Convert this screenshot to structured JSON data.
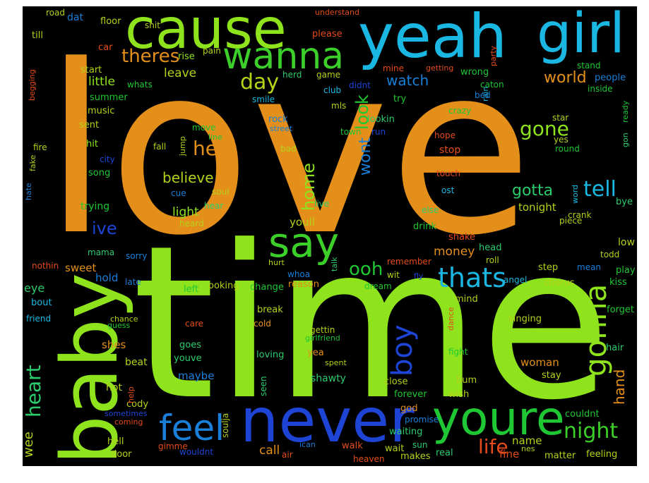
{
  "background": "#000000",
  "words": [
    {
      "text": "love",
      "color": "#e38f1a"
    },
    {
      "text": "time",
      "color": "#8ee31c"
    },
    {
      "text": "yeah",
      "color": "#1bb7e3"
    },
    {
      "text": "girl",
      "color": "#1bb7e3"
    },
    {
      "text": "cause",
      "color": "#8ee31c"
    },
    {
      "text": "wanna",
      "color": "#3ccf2a"
    },
    {
      "text": "baby",
      "color": "#8ee31c"
    },
    {
      "text": "never",
      "color": "#1e44d6"
    },
    {
      "text": "youre",
      "color": "#1ec733"
    },
    {
      "text": "feel",
      "color": "#1a7fd8"
    },
    {
      "text": "say",
      "color": "#3ccf2a"
    },
    {
      "text": "gonna",
      "color": "#8ee31c"
    },
    {
      "text": "thats",
      "color": "#1bb7e3"
    },
    {
      "text": "boy",
      "color": "#1e44d6"
    },
    {
      "text": "heart",
      "color": "#2ccc6e"
    },
    {
      "text": "theres",
      "color": "#e38f1a"
    },
    {
      "text": "day",
      "color": "#b5d119"
    },
    {
      "text": "gone",
      "color": "#8ee31c"
    },
    {
      "text": "hey",
      "color": "#e38f1a"
    },
    {
      "text": "tell",
      "color": "#1bb7e3"
    },
    {
      "text": "night",
      "color": "#3ccf2a"
    },
    {
      "text": "life",
      "color": "#e34b1a"
    },
    {
      "text": "ooh",
      "color": "#1ec733"
    },
    {
      "text": "believe",
      "color": "#b5d119"
    },
    {
      "text": "gotta",
      "color": "#2ccc6e"
    },
    {
      "text": "world",
      "color": "#e38f1a"
    },
    {
      "text": "watch",
      "color": "#1a7fd8"
    },
    {
      "text": "look",
      "color": "#1ec733"
    },
    {
      "text": "wont",
      "color": "#1a7fd8"
    },
    {
      "text": "home",
      "color": "#8ee31c"
    },
    {
      "text": "ive",
      "color": "#1e44d6"
    },
    {
      "text": "hand",
      "color": "#e38f1a"
    },
    {
      "text": "wee",
      "color": "#b5d119"
    },
    {
      "text": "leave",
      "color": "#b5d119"
    },
    {
      "text": "little",
      "color": "#8ee31c"
    },
    {
      "text": "light",
      "color": "#8ee31c"
    },
    {
      "text": "money",
      "color": "#e38f1a"
    },
    {
      "text": "tonight",
      "color": "#b5d119"
    },
    {
      "text": "youll",
      "color": "#b5d119"
    },
    {
      "text": "call",
      "color": "#e38f1a"
    },
    {
      "text": "name",
      "color": "#b5d119"
    },
    {
      "text": "fine",
      "color": "#e34b1a"
    },
    {
      "text": "eye",
      "color": "#2ccc6e"
    },
    {
      "text": "sweet",
      "color": "#e38f1a"
    },
    {
      "text": "hold",
      "color": "#1a7fd8"
    },
    {
      "text": "shes",
      "color": "#e38f1a"
    },
    {
      "text": "woman",
      "color": "#e38f1a"
    },
    {
      "text": "maybe",
      "color": "#1a7fd8"
    },
    {
      "text": "shawty",
      "color": "#2ccc6e"
    },
    {
      "text": "low",
      "color": "#b5d119"
    },
    {
      "text": "stop",
      "color": "#e34b1a"
    },
    {
      "text": "dat",
      "color": "#1a7fd8"
    },
    {
      "text": "road",
      "color": "#b5d119"
    },
    {
      "text": "floor",
      "color": "#b5d119"
    },
    {
      "text": "till",
      "color": "#b5d119"
    },
    {
      "text": "shit",
      "color": "#b5d119"
    },
    {
      "text": "car",
      "color": "#e34b1a"
    },
    {
      "text": "rise",
      "color": "#8ee31c"
    },
    {
      "text": "pain",
      "color": "#b5d119"
    },
    {
      "text": "please",
      "color": "#e34b1a"
    },
    {
      "text": "understand",
      "color": "#e34b1a"
    },
    {
      "text": "start",
      "color": "#b5d119"
    },
    {
      "text": "whats",
      "color": "#1ec733"
    },
    {
      "text": "summer",
      "color": "#1ec733"
    },
    {
      "text": "music",
      "color": "#b5d119"
    },
    {
      "text": "sent",
      "color": "#b5d119"
    },
    {
      "text": "hit",
      "color": "#8ee31c"
    },
    {
      "text": "song",
      "color": "#1ec733"
    },
    {
      "text": "trying",
      "color": "#1ec733"
    },
    {
      "text": "mama",
      "color": "#2ccc6e"
    },
    {
      "text": "sorry",
      "color": "#1a7fd8"
    },
    {
      "text": "nothin",
      "color": "#e34b1a"
    },
    {
      "text": "bout",
      "color": "#1bb7e3"
    },
    {
      "text": "friend",
      "color": "#1bb7e3"
    },
    {
      "text": "late",
      "color": "#1a7fd8"
    },
    {
      "text": "left",
      "color": "#1ec733"
    },
    {
      "text": "ooking",
      "color": "#b5d119"
    },
    {
      "text": "change",
      "color": "#1ec733"
    },
    {
      "text": "reason",
      "color": "#e38f1a"
    },
    {
      "text": "break",
      "color": "#b5d119"
    },
    {
      "text": "chance",
      "color": "#b5d119"
    },
    {
      "text": "guess",
      "color": "#1ec733"
    },
    {
      "text": "care",
      "color": "#e34b1a"
    },
    {
      "text": "cold",
      "color": "#e38f1a"
    },
    {
      "text": "goes",
      "color": "#2ccc6e"
    },
    {
      "text": "youve",
      "color": "#2ccc6e"
    },
    {
      "text": "beat",
      "color": "#b5d119"
    },
    {
      "text": "loving",
      "color": "#2ccc6e"
    },
    {
      "text": "hot",
      "color": "#b5d119"
    },
    {
      "text": "cody",
      "color": "#b5d119"
    },
    {
      "text": "sometimes",
      "color": "#1e44d6"
    },
    {
      "text": "coming",
      "color": "#e34b1a"
    },
    {
      "text": "hell",
      "color": "#b5d119"
    },
    {
      "text": "door",
      "color": "#b5d119"
    },
    {
      "text": "gimme",
      "color": "#e34b1a"
    },
    {
      "text": "wouldnt",
      "color": "#1e44d6"
    },
    {
      "text": "air",
      "color": "#e34b1a"
    },
    {
      "text": "heaven",
      "color": "#e34b1a"
    },
    {
      "text": "makes",
      "color": "#b5d119"
    },
    {
      "text": "real",
      "color": "#2ccc6e"
    },
    {
      "text": "wait",
      "color": "#b5d119"
    },
    {
      "text": "walk",
      "color": "#e34b1a"
    },
    {
      "text": "sun",
      "color": "#2ccc6e"
    },
    {
      "text": "matter",
      "color": "#b5d119"
    },
    {
      "text": "feeling",
      "color": "#b5d119"
    },
    {
      "text": "god",
      "color": "#e38f1a"
    },
    {
      "text": "promise",
      "color": "#1a7fd8"
    },
    {
      "text": "waiting",
      "color": "#2ccc6e"
    },
    {
      "text": "forever",
      "color": "#1ec733"
    },
    {
      "text": "close",
      "color": "#b5d119"
    },
    {
      "text": "wish",
      "color": "#b5d119"
    },
    {
      "text": "bum",
      "color": "#b5d119"
    },
    {
      "text": "stay",
      "color": "#b5d119"
    },
    {
      "text": "couldnt",
      "color": "#1ec733"
    },
    {
      "text": "seen",
      "color": "#2ccc6e"
    },
    {
      "text": "soulja",
      "color": "#b5d119"
    },
    {
      "text": "yea",
      "color": "#e38f1a"
    },
    {
      "text": "spent",
      "color": "#b5d119"
    },
    {
      "text": "girlfriend",
      "color": "#1ec733"
    },
    {
      "text": "gettin",
      "color": "#b5d119"
    },
    {
      "text": "fight",
      "color": "#1ec733"
    },
    {
      "text": "dance",
      "color": "#e34b1a"
    },
    {
      "text": "mind",
      "color": "#b5d119"
    },
    {
      "text": "singing",
      "color": "#b5d119"
    },
    {
      "text": "hair",
      "color": "#2ccc6e"
    },
    {
      "text": "forget",
      "color": "#1ec733"
    },
    {
      "text": "kiss",
      "color": "#1ec733"
    },
    {
      "text": "play",
      "color": "#1ec733"
    },
    {
      "text": "mean",
      "color": "#1a7fd8"
    },
    {
      "text": "chorus",
      "color": "#b5d119"
    },
    {
      "text": "angel",
      "color": "#1bb7e3"
    },
    {
      "text": "step",
      "color": "#b5d119"
    },
    {
      "text": "roll",
      "color": "#b5d119"
    },
    {
      "text": "head",
      "color": "#2ccc6e"
    },
    {
      "text": "shake",
      "color": "#e34b1a"
    },
    {
      "text": "drink",
      "color": "#1ec733"
    },
    {
      "text": "else",
      "color": "#2ccc6e"
    },
    {
      "text": "ost",
      "color": "#1bb7e3"
    },
    {
      "text": "touch",
      "color": "#e34b1a"
    },
    {
      "text": "remember",
      "color": "#e34b1a"
    },
    {
      "text": "hope",
      "color": "#e34b1a"
    },
    {
      "text": "crazy",
      "color": "#1ec733"
    },
    {
      "text": "caton",
      "color": "#1ec733"
    },
    {
      "text": "wrong",
      "color": "#1ec733"
    },
    {
      "text": "getting",
      "color": "#e34b1a"
    },
    {
      "text": "mine",
      "color": "#e34b1a"
    },
    {
      "text": "party",
      "color": "#e34b1a"
    },
    {
      "text": "stand",
      "color": "#1ec733"
    },
    {
      "text": "people",
      "color": "#1a7fd8"
    },
    {
      "text": "inside",
      "color": "#1ec733"
    },
    {
      "text": "star",
      "color": "#b5d119"
    },
    {
      "text": "yes",
      "color": "#b5d119"
    },
    {
      "text": "round",
      "color": "#1ec733"
    },
    {
      "text": "bye",
      "color": "#2ccc6e"
    },
    {
      "text": "piece",
      "color": "#b5d119"
    },
    {
      "text": "crank",
      "color": "#b5d119"
    },
    {
      "text": "word",
      "color": "#1bb7e3"
    },
    {
      "text": "herd",
      "color": "#2ccc6e"
    },
    {
      "text": "game",
      "color": "#b5d119"
    },
    {
      "text": "club",
      "color": "#1bb7e3"
    },
    {
      "text": "didnt",
      "color": "#1e44d6"
    },
    {
      "text": "smile",
      "color": "#1bb7e3"
    },
    {
      "text": "mls",
      "color": "#b5d119"
    },
    {
      "text": "try",
      "color": "#1ec733"
    },
    {
      "text": "rock",
      "color": "#1a7fd8"
    },
    {
      "text": "lookin",
      "color": "#2ccc6e"
    },
    {
      "text": "street",
      "color": "#1a7fd8"
    },
    {
      "text": "town",
      "color": "#1ec733"
    },
    {
      "text": "run",
      "color": "#1e44d6"
    },
    {
      "text": "move",
      "color": "#1ec733"
    },
    {
      "text": "line",
      "color": "#1ec733"
    },
    {
      "text": "fall",
      "color": "#b5d119"
    },
    {
      "text": "jump",
      "color": "#b5d119"
    },
    {
      "text": "bad",
      "color": "#b5d119"
    },
    {
      "text": "city",
      "color": "#1e44d6"
    },
    {
      "text": "fire",
      "color": "#b5d119"
    },
    {
      "text": "fake",
      "color": "#b5d119"
    },
    {
      "text": "hate",
      "color": "#1a7fd8"
    },
    {
      "text": "begging",
      "color": "#e34b1a"
    },
    {
      "text": "cue",
      "color": "#1a7fd8"
    },
    {
      "text": "soul",
      "color": "#b5d119"
    },
    {
      "text": "hear",
      "color": "#2ccc6e"
    },
    {
      "text": "heard",
      "color": "#b5d119"
    },
    {
      "text": "live",
      "color": "#2ccc6e"
    },
    {
      "text": "whoa",
      "color": "#1a7fd8"
    },
    {
      "text": "dream",
      "color": "#1ec733"
    },
    {
      "text": "wit",
      "color": "#b5d119"
    },
    {
      "text": "fly",
      "color": "#1e44d6"
    },
    {
      "text": "talk",
      "color": "#2ccc6e"
    },
    {
      "text": "hurt",
      "color": "#b5d119"
    },
    {
      "text": "todd",
      "color": "#b5d119"
    },
    {
      "text": "gon",
      "color": "#2ccc6e"
    },
    {
      "text": "ready",
      "color": "#1ec733"
    },
    {
      "text": "rain",
      "color": "#1bb7e3"
    },
    {
      "text": "bed",
      "color": "#1a7fd8"
    },
    {
      "text": "help",
      "color": "#e34b1a"
    },
    {
      "text": "nes",
      "color": "#b5d119"
    },
    {
      "text": "ican",
      "color": "#1a7fd8"
    }
  ]
}
